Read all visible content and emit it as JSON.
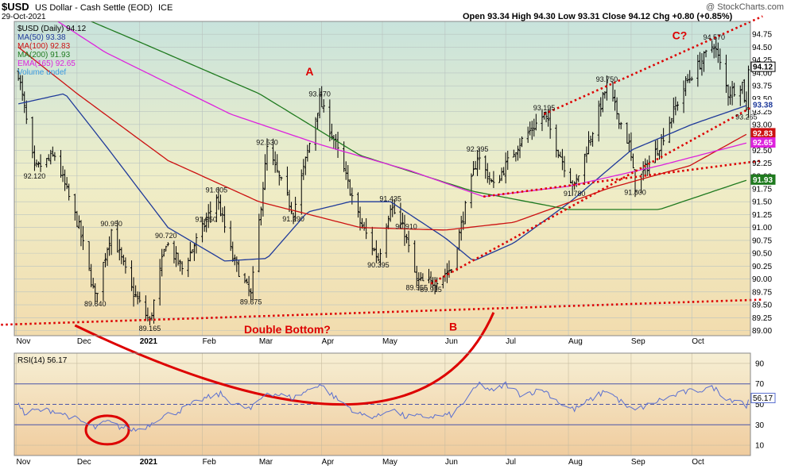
{
  "header": {
    "symbol": "$USD",
    "name": "US Dollar - Cash Settle (EOD)",
    "exchange": "ICE",
    "date": "29-Oct-2021",
    "quote": "Open 93.34  High 94.30  Low 93.31  Close 94.12  Chg +0.80 (+0.85%)",
    "watermark": "@ StockCharts.com"
  },
  "legend": {
    "price": "$USD (Daily) 94.12",
    "ma50": "MA(50) 93.38",
    "ma100": "MA(100) 92.83",
    "ma200": "MA(200) 91.93",
    "ema165": "EMA(165) 92.65",
    "volume": "Volume undef"
  },
  "rsi_legend": "RSI(14) 56.17",
  "colors": {
    "price": "#000000",
    "ma50": "#1f3a9a",
    "ma100": "#cc1111",
    "ma200": "#1f7a1f",
    "ema165": "#dd22dd",
    "rsi": "#5a6fd0",
    "annotation": "#dd0000"
  },
  "chart_data": [
    {
      "type": "line",
      "title": "$USD (Daily)",
      "x_ticks": [
        "Nov",
        "Dec",
        "2021",
        "Feb",
        "Mar",
        "Apr",
        "May",
        "Jun",
        "Jul",
        "Aug",
        "Sep",
        "Oct"
      ],
      "y_ticks": [
        "89.00",
        "89.25",
        "89.50",
        "89.75",
        "90.00",
        "90.25",
        "90.50",
        "90.75",
        "91.00",
        "91.25",
        "91.50",
        "91.75",
        "92.00",
        "92.25",
        "92.50",
        "92.75",
        "93.00",
        "93.25",
        "93.50",
        "93.75",
        "94.00",
        "94.25",
        "94.50",
        "94.75"
      ],
      "ylim": [
        88.9,
        95.0
      ],
      "series": [
        {
          "name": "$USD",
          "kind": "ohlc",
          "key_points": [
            [
              "2020-11-02",
              94.0
            ],
            [
              "2020-11-10",
              92.12
            ],
            [
              "2020-11-20",
              92.4
            ],
            [
              "2020-12-02",
              91.0
            ],
            [
              "2020-12-10",
              89.64
            ],
            [
              "2020-12-18",
              90.95
            ],
            [
              "2020-12-28",
              89.8
            ],
            [
              "2021-01-06",
              89.165
            ],
            [
              "2021-01-14",
              90.72
            ],
            [
              "2021-01-22",
              90.2
            ],
            [
              "2021-02-02",
              91.05
            ],
            [
              "2021-02-08",
              91.605
            ],
            [
              "2021-02-16",
              90.4
            ],
            [
              "2021-02-25",
              89.675
            ],
            [
              "2021-03-05",
              92.53
            ],
            [
              "2021-03-18",
              91.29
            ],
            [
              "2021-03-31",
              93.47
            ],
            [
              "2021-04-08",
              92.6
            ],
            [
              "2021-04-20",
              91.1
            ],
            [
              "2021-04-29",
              90.395
            ],
            [
              "2021-05-05",
              91.435
            ],
            [
              "2021-05-12",
              90.91
            ],
            [
              "2021-05-18",
              89.955
            ],
            [
              "2021-05-25",
              89.915
            ],
            [
              "2021-06-04",
              90.2
            ],
            [
              "2021-06-17",
              92.395
            ],
            [
              "2021-06-25",
              91.8
            ],
            [
              "2021-07-07",
              92.6
            ],
            [
              "2021-07-20",
              93.195
            ],
            [
              "2021-07-30",
              92.2
            ],
            [
              "2021-08-04",
              91.78
            ],
            [
              "2021-08-20",
              93.75
            ],
            [
              "2021-08-31",
              92.6
            ],
            [
              "2021-09-03",
              91.8
            ],
            [
              "2021-09-15",
              92.6
            ],
            [
              "2021-09-28",
              93.8
            ],
            [
              "2021-10-12",
              94.57
            ],
            [
              "2021-10-19",
              93.6
            ],
            [
              "2021-10-26",
              93.8
            ],
            [
              "2021-10-28",
              93.265
            ],
            [
              "2021-10-29",
              94.12
            ]
          ]
        },
        {
          "name": "MA(50)",
          "last": 93.38,
          "key_points": [
            [
              "2020-11-02",
              93.4
            ],
            [
              "2020-11-25",
              93.6
            ],
            [
              "2020-12-15",
              92.6
            ],
            [
              "2021-01-15",
              91.0
            ],
            [
              "2021-02-12",
              90.35
            ],
            [
              "2021-03-05",
              90.4
            ],
            [
              "2021-03-25",
              91.3
            ],
            [
              "2021-04-15",
              91.5
            ],
            [
              "2021-05-05",
              91.5
            ],
            [
              "2021-06-01",
              90.8
            ],
            [
              "2021-06-15",
              90.35
            ],
            [
              "2021-07-05",
              90.7
            ],
            [
              "2021-08-02",
              91.5
            ],
            [
              "2021-09-01",
              92.5
            ],
            [
              "2021-10-01",
              93.0
            ],
            [
              "2021-10-29",
              93.38
            ]
          ]
        },
        {
          "name": "MA(100)",
          "last": 92.83,
          "key_points": [
            [
              "2020-11-02",
              94.5
            ],
            [
              "2020-12-01",
              93.6
            ],
            [
              "2021-01-15",
              92.3
            ],
            [
              "2021-03-01",
              91.5
            ],
            [
              "2021-04-20",
              91.0
            ],
            [
              "2021-06-01",
              90.95
            ],
            [
              "2021-07-05",
              91.1
            ],
            [
              "2021-08-20",
              91.75
            ],
            [
              "2021-09-30",
              92.2
            ],
            [
              "2021-10-29",
              92.83
            ]
          ]
        },
        {
          "name": "MA(200)",
          "last": 91.93,
          "key_points": [
            [
              "2020-11-02",
              95.6
            ],
            [
              "2021-01-01",
              94.6
            ],
            [
              "2021-03-01",
              93.6
            ],
            [
              "2021-04-20",
              92.4
            ],
            [
              "2021-06-15",
              91.7
            ],
            [
              "2021-08-01",
              91.35
            ],
            [
              "2021-09-15",
              91.35
            ],
            [
              "2021-10-29",
              91.93
            ]
          ]
        },
        {
          "name": "EMA(165)",
          "last": 92.65,
          "key_points": [
            [
              "2020-11-02",
              95.5
            ],
            [
              "2020-12-15",
              94.4
            ],
            [
              "2021-02-15",
              93.2
            ],
            [
              "2021-04-01",
              92.6
            ],
            [
              "2021-05-15",
              92.1
            ],
            [
              "2021-06-20",
              91.6
            ],
            [
              "2021-08-01",
              91.8
            ],
            [
              "2021-09-15",
              92.2
            ],
            [
              "2021-10-29",
              92.65
            ]
          ]
        }
      ],
      "trendlines": [
        {
          "name": "support",
          "from": [
            "2020-10-15",
            89.1
          ],
          "to": [
            "2021-11-05",
            89.6
          ]
        },
        {
          "name": "lower-channel",
          "from": [
            "2021-05-25",
            89.91
          ],
          "to": [
            "2021-11-05",
            93.45
          ]
        },
        {
          "name": "upper-channel",
          "from": [
            "2021-07-20",
            93.2
          ],
          "to": [
            "2021-11-05",
            95.1
          ]
        },
        {
          "name": "neckline",
          "from": [
            "2021-06-20",
            91.6
          ],
          "to": [
            "2021-11-05",
            92.3
          ]
        }
      ],
      "price_labels": [
        {
          "text": "92.120",
          "x": "2020-11-10",
          "y": 92.12,
          "pos": "below"
        },
        {
          "text": "89.640",
          "x": "2020-12-10",
          "y": 89.64,
          "pos": "below"
        },
        {
          "text": "90.950",
          "x": "2020-12-18",
          "y": 90.95,
          "pos": "above"
        },
        {
          "text": "89.165",
          "x": "2021-01-06",
          "y": 89.165,
          "pos": "below"
        },
        {
          "text": "90.720",
          "x": "2021-01-14",
          "y": 90.72,
          "pos": "above"
        },
        {
          "text": "91.605",
          "x": "2021-02-08",
          "y": 91.605,
          "pos": "above"
        },
        {
          "text": "91.050",
          "x": "2021-02-02",
          "y": 91.05,
          "pos": "aboveRight"
        },
        {
          "text": "89.675",
          "x": "2021-02-25",
          "y": 89.675,
          "pos": "below"
        },
        {
          "text": "92.530",
          "x": "2021-03-05",
          "y": 92.53,
          "pos": "above"
        },
        {
          "text": "91.290",
          "x": "2021-03-18",
          "y": 91.29,
          "pos": "below"
        },
        {
          "text": "93.470",
          "x": "2021-03-31",
          "y": 93.47,
          "pos": "above"
        },
        {
          "text": "91.435",
          "x": "2021-05-05",
          "y": 91.435,
          "pos": "above"
        },
        {
          "text": "90.910",
          "x": "2021-05-12",
          "y": 90.91,
          "pos": "aboveRight"
        },
        {
          "text": "90.395",
          "x": "2021-04-29",
          "y": 90.395,
          "pos": "below"
        },
        {
          "text": "89.955",
          "x": "2021-05-18",
          "y": 89.955,
          "pos": "below"
        },
        {
          "text": "89.915",
          "x": "2021-05-25",
          "y": 89.915,
          "pos": "below"
        },
        {
          "text": "92.395",
          "x": "2021-06-17",
          "y": 92.395,
          "pos": "above"
        },
        {
          "text": "91.780",
          "x": "2021-08-04",
          "y": 91.78,
          "pos": "below"
        },
        {
          "text": "93.195",
          "x": "2021-07-20",
          "y": 93.195,
          "pos": "above"
        },
        {
          "text": "93.750",
          "x": "2021-08-20",
          "y": 93.75,
          "pos": "above"
        },
        {
          "text": "91.800",
          "x": "2021-09-03",
          "y": 91.8,
          "pos": "below"
        },
        {
          "text": "94.570",
          "x": "2021-10-12",
          "y": 94.57,
          "pos": "above"
        },
        {
          "text": "93.265",
          "x": "2021-10-28",
          "y": 93.265,
          "pos": "below"
        }
      ],
      "right_axis_markers": [
        {
          "value": 94.12,
          "text": "94.12",
          "style": "price"
        },
        {
          "value": 93.38,
          "text": "93.38",
          "style": "ma50"
        },
        {
          "value": 92.83,
          "text": "92.83",
          "style": "ma100"
        },
        {
          "value": 92.65,
          "text": "92.65",
          "style": "ema165"
        },
        {
          "value": 91.93,
          "text": "91.93",
          "style": "ma200"
        }
      ],
      "annotations": [
        {
          "text": "A",
          "x": "2021-03-26",
          "y": 93.95
        },
        {
          "text": "B",
          "x": "2021-06-05",
          "y": 89.0
        },
        {
          "text": "C?",
          "x": "2021-09-25",
          "y": 94.65
        },
        {
          "text": "Double Bottom?",
          "x": "2021-03-15",
          "y": 88.95
        }
      ]
    },
    {
      "type": "line",
      "title": "RSI(14)",
      "x_ticks": [
        "Nov",
        "Dec",
        "2021",
        "Feb",
        "Mar",
        "Apr",
        "May",
        "Jun",
        "Jul",
        "Aug",
        "Sep",
        "Oct"
      ],
      "y_ticks": [
        "10",
        "30",
        "50",
        "70",
        "90"
      ],
      "ylim": [
        0,
        100
      ],
      "reference_lines": [
        30,
        50,
        70
      ],
      "last": 56.17,
      "series": [
        {
          "name": "RSI(14)",
          "key_points": [
            [
              "2020-11-02",
              53
            ],
            [
              "2020-11-05",
              40
            ],
            [
              "2020-11-10",
              44
            ],
            [
              "2020-11-20",
              44
            ],
            [
              "2020-11-30",
              36
            ],
            [
              "2020-12-10",
              27
            ],
            [
              "2020-12-16",
              33
            ],
            [
              "2020-12-22",
              28
            ],
            [
              "2020-12-30",
              25
            ],
            [
              "2021-01-05",
              29
            ],
            [
              "2021-01-10",
              37
            ],
            [
              "2021-01-20",
              43
            ],
            [
              "2021-02-01",
              55
            ],
            [
              "2021-02-10",
              60
            ],
            [
              "2021-02-17",
              50
            ],
            [
              "2021-02-25",
              45
            ],
            [
              "2021-03-05",
              62
            ],
            [
              "2021-03-18",
              56
            ],
            [
              "2021-03-31",
              70
            ],
            [
              "2021-04-08",
              56
            ],
            [
              "2021-04-20",
              40
            ],
            [
              "2021-04-29",
              38
            ],
            [
              "2021-05-05",
              46
            ],
            [
              "2021-05-12",
              38
            ],
            [
              "2021-05-25",
              38
            ],
            [
              "2021-06-05",
              40
            ],
            [
              "2021-06-18",
              70
            ],
            [
              "2021-06-25",
              62
            ],
            [
              "2021-07-01",
              70
            ],
            [
              "2021-07-08",
              60
            ],
            [
              "2021-07-20",
              64
            ],
            [
              "2021-07-30",
              48
            ],
            [
              "2021-08-04",
              45
            ],
            [
              "2021-08-20",
              64
            ],
            [
              "2021-08-31",
              46
            ],
            [
              "2021-09-03",
              44
            ],
            [
              "2021-09-15",
              54
            ],
            [
              "2021-09-28",
              62
            ],
            [
              "2021-10-12",
              66
            ],
            [
              "2021-10-19",
              55
            ],
            [
              "2021-10-26",
              54
            ],
            [
              "2021-10-28",
              45
            ],
            [
              "2021-10-29",
              56.17
            ]
          ]
        }
      ],
      "annotations": [
        {
          "kind": "circle",
          "x": "2020-12-16",
          "y": 28
        },
        {
          "kind": "arc",
          "from": [
            "2020-11-30",
            89.1
          ],
          "through": [
            "2021-04-15",
            50
          ],
          "to": [
            "2021-06-25",
            89.35
          ]
        }
      ]
    }
  ]
}
